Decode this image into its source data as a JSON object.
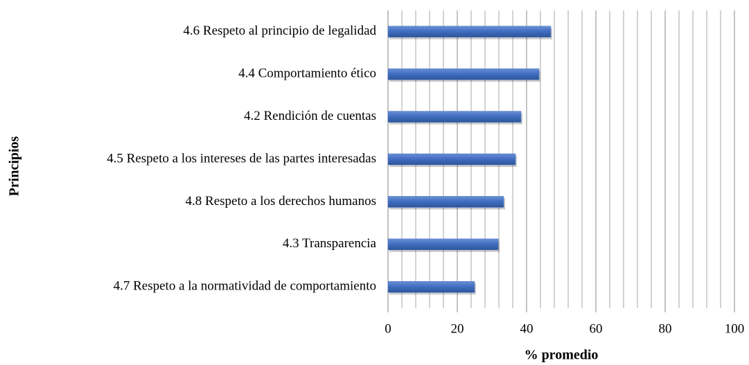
{
  "chart_data": {
    "type": "barh",
    "categories": [
      "4.6 Respeto al principio de legalidad",
      "4.4 Comportamiento ético",
      "4.2 Rendición de cuentas",
      "4.5 Respeto a los intereses de las partes interesadas",
      "4.8 Respeto a los derechos humanos",
      "4.3 Transparencia",
      "4.7 Respeto a la normatividad de comportamiento"
    ],
    "values": [
      47,
      43.6,
      38.4,
      36.8,
      33.4,
      31.8,
      25
    ],
    "color": "#4472c4",
    "xlim": [
      0,
      100
    ],
    "xticks": [
      0,
      20,
      40,
      60,
      80,
      100
    ],
    "minor_xticks": [
      4,
      8,
      12,
      16,
      24,
      28,
      32,
      36,
      44,
      48,
      52,
      56,
      64,
      68,
      72,
      76,
      84,
      88,
      92,
      96
    ],
    "grid": true,
    "xlabel": "% promedio",
    "ylabel": "Principios"
  }
}
